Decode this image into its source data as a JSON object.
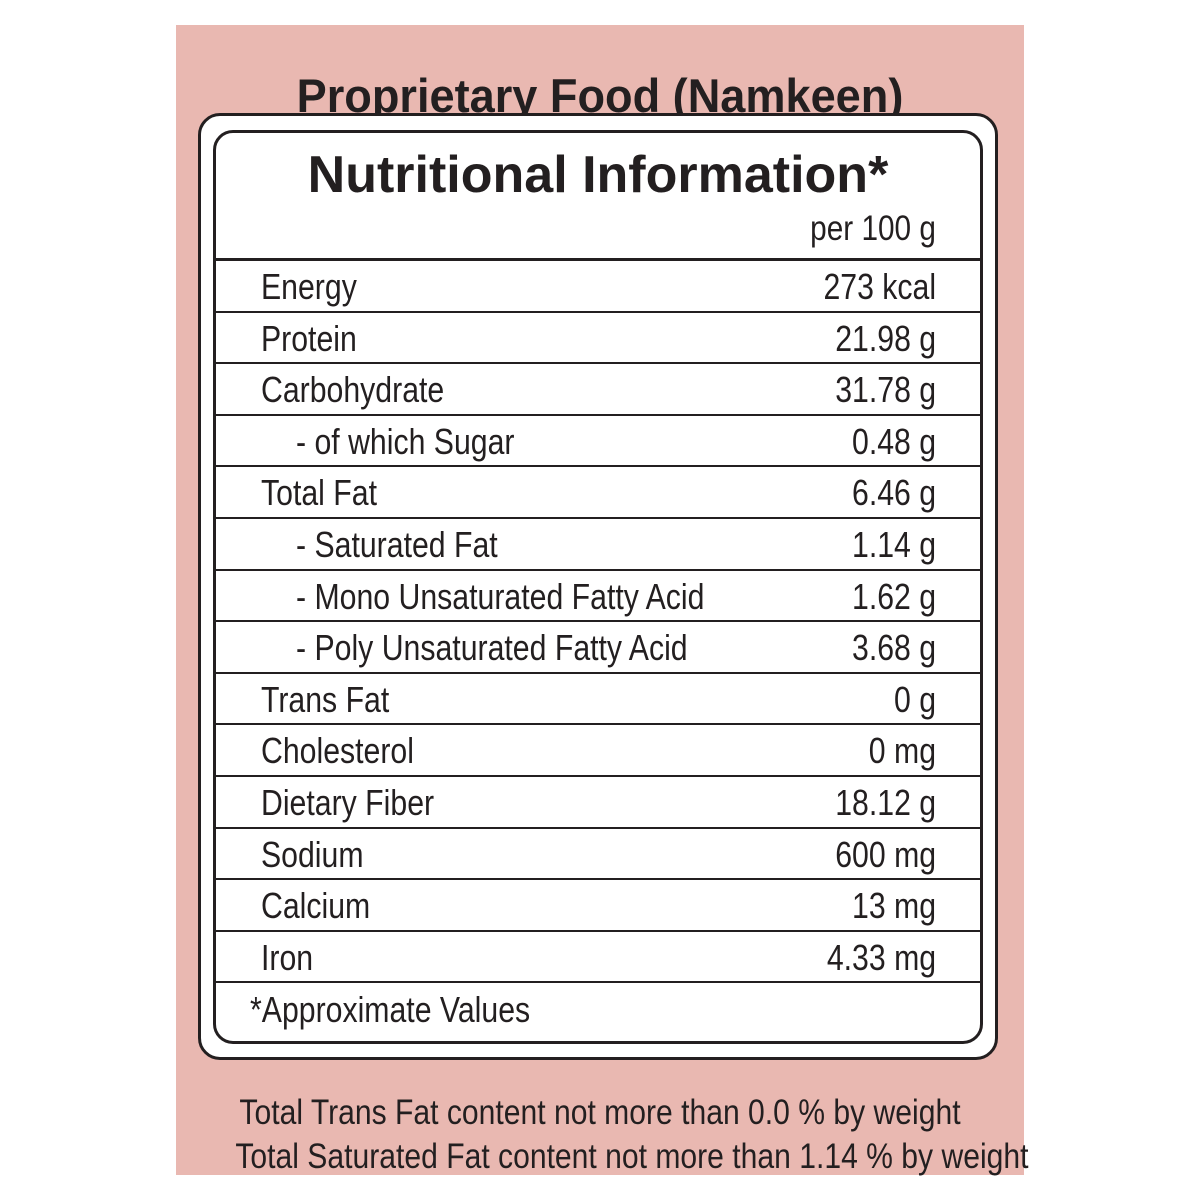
{
  "title": "Proprietary Food (Namkeen)",
  "panel_color": "#e9b8b1",
  "table": {
    "heading": "Nutritional Information*",
    "per": "per 100 g",
    "rows": [
      {
        "label": "Energy",
        "value": "273 kcal",
        "indent": false
      },
      {
        "label": "Protein",
        "value": "21.98 g",
        "indent": false
      },
      {
        "label": "Carbohydrate",
        "value": "31.78 g",
        "indent": false
      },
      {
        "label": "- of which Sugar",
        "value": "0.48 g",
        "indent": true
      },
      {
        "label": "Total Fat",
        "value": "6.46 g",
        "indent": false
      },
      {
        "label": "- Saturated Fat",
        "value": "1.14 g",
        "indent": true
      },
      {
        "label": "- Mono Unsaturated Fatty Acid",
        "value": "1.62 g",
        "indent": true
      },
      {
        "label": "- Poly Unsaturated Fatty Acid",
        "value": "3.68 g",
        "indent": true
      },
      {
        "label": "Trans Fat",
        "value": "0 g",
        "indent": false
      },
      {
        "label": "Cholesterol",
        "value": "0 mg",
        "indent": false
      },
      {
        "label": "Dietary Fiber",
        "value": "18.12 g",
        "indent": false
      },
      {
        "label": "Sodium",
        "value": "600 mg",
        "indent": false
      },
      {
        "label": "Calcium",
        "value": "13 mg",
        "indent": false
      },
      {
        "label": "Iron",
        "value": "4.33 mg",
        "indent": false
      }
    ],
    "footnote": "*Approximate Values"
  },
  "notes": [
    "Total Trans Fat content not more than 0.0 % by weight",
    "Total Saturated Fat content not more than 1.14 % by weight"
  ]
}
